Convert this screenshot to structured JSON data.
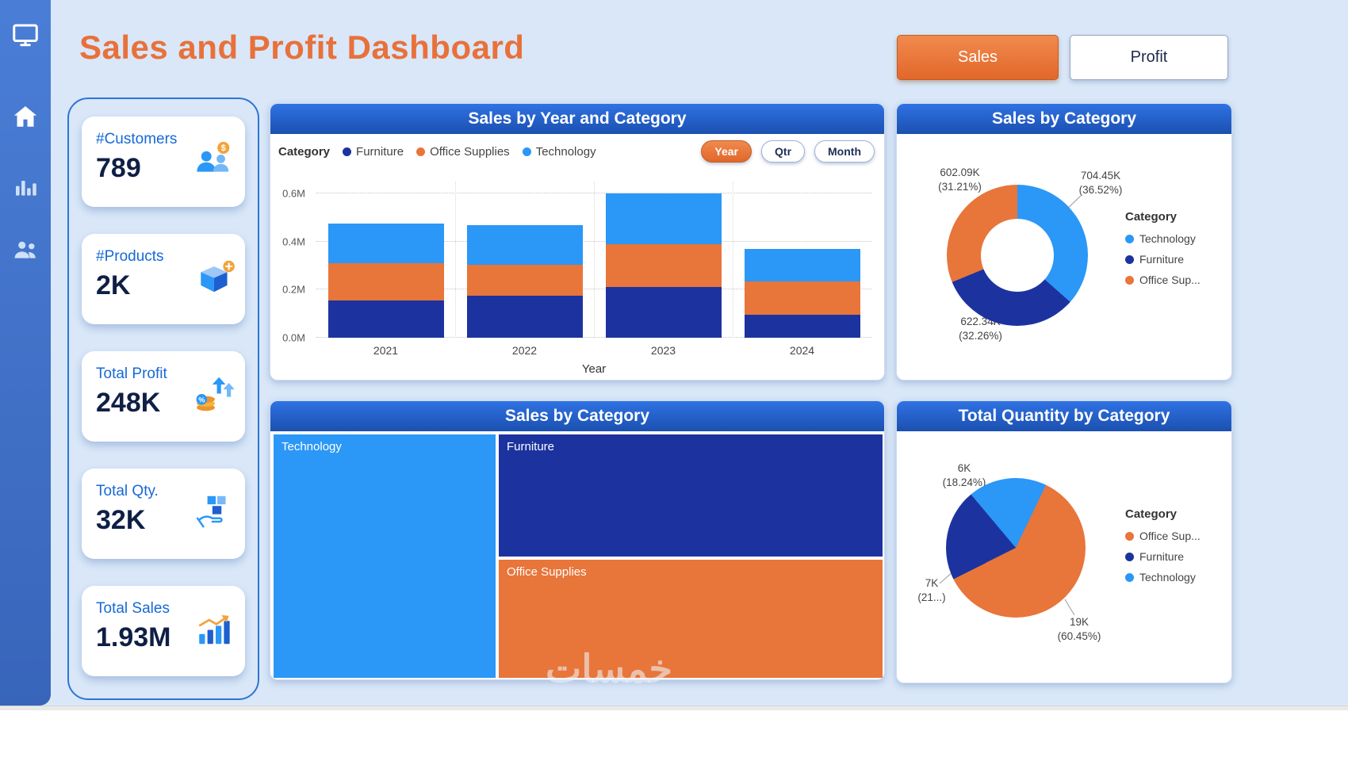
{
  "header": {
    "title": "Sales and Profit Dashboard",
    "buttons": [
      {
        "label": "Sales",
        "active": true
      },
      {
        "label": "Profit",
        "active": false
      }
    ]
  },
  "sidebar": {
    "icons": [
      "monitor",
      "home",
      "bar-chart",
      "people"
    ]
  },
  "kpis": [
    {
      "label": "#Customers",
      "value": "789",
      "icon": "customers-icon"
    },
    {
      "label": "#Products",
      "value": "2K",
      "icon": "products-icon"
    },
    {
      "label": "Total Profit",
      "value": "248K",
      "icon": "profit-icon"
    },
    {
      "label": "Total Qty.",
      "value": "32K",
      "icon": "quantity-icon"
    },
    {
      "label": "Total Sales",
      "value": "1.93M",
      "icon": "sales-icon"
    }
  ],
  "colors": {
    "background": "#d9e7f8",
    "sidebar": "#4a7ed6",
    "accent_orange": "#e8713b",
    "title_bar": "#2563d0",
    "furniture": "#1c339f",
    "office_supplies": "#e8753a",
    "technology": "#2b97f7"
  },
  "bar_chart": {
    "title": "Sales by Year and Category",
    "legend_title": "Category",
    "buttons": {
      "year": "Year",
      "qtr": "Qtr",
      "month": "Month",
      "active": "Year"
    },
    "xlabel": "Year",
    "yticks": [
      {
        "label": "0.0M",
        "value": 0
      },
      {
        "label": "0.2M",
        "value": 0.2
      },
      {
        "label": "0.4M",
        "value": 0.4
      },
      {
        "label": "0.6M",
        "value": 0.6
      }
    ],
    "chart_data": {
      "type": "bar-stacked",
      "categories": [
        "2021",
        "2022",
        "2023",
        "2024"
      ],
      "series": [
        {
          "name": "Furniture",
          "color": "#1c339f",
          "values": [
            0.155,
            0.175,
            0.21,
            0.095
          ]
        },
        {
          "name": "Office Supplies",
          "color": "#e8753a",
          "values": [
            0.155,
            0.13,
            0.18,
            0.14
          ]
        },
        {
          "name": "Technology",
          "color": "#2b97f7",
          "values": [
            0.165,
            0.165,
            0.21,
            0.135
          ]
        }
      ],
      "ylim": [
        0,
        0.65
      ],
      "grid": true,
      "legend_position": "top"
    }
  },
  "treemap": {
    "title": "Sales by Category",
    "chart_data": {
      "type": "treemap",
      "items": [
        {
          "label": "Technology",
          "color": "#2b97f7",
          "share_percent": 36.5
        },
        {
          "label": "Furniture",
          "color": "#1c339f",
          "share_percent": 32.3
        },
        {
          "label": "Office Supplies",
          "color": "#e8753a",
          "share_percent": 31.2
        }
      ]
    }
  },
  "donut_chart": {
    "title": "Sales by Category",
    "legend_title": "Category",
    "chart_data": {
      "type": "donut",
      "start_angle": 0,
      "slices": [
        {
          "label": "Technology",
          "value": "704.45K",
          "percent": 36.52,
          "color": "#2b97f7"
        },
        {
          "label": "Furniture",
          "value": "622.34K",
          "percent": 32.26,
          "color": "#1c339f"
        },
        {
          "label": "Office Supplies",
          "value": "602.09K",
          "percent": 31.21,
          "color": "#e8753a"
        }
      ],
      "legend_position": "right"
    },
    "callouts": {
      "technology": {
        "value": "704.45K",
        "percent": "(36.52%)"
      },
      "office": {
        "value": "602.09K",
        "percent": "(31.21%)"
      },
      "furniture": {
        "value": "622.34K",
        "percent": "(32.26%)"
      }
    },
    "legend_items": [
      {
        "label": "Technology",
        "color": "#2b97f7"
      },
      {
        "label": "Furniture",
        "color": "#1c339f"
      },
      {
        "label": "Office Sup...",
        "color": "#e8753a"
      }
    ]
  },
  "pie_chart": {
    "title": "Total Quantity by Category",
    "legend_title": "Category",
    "chart_data": {
      "type": "pie",
      "start_angle": -40,
      "slices": [
        {
          "label": "Technology",
          "value": "6K",
          "percent": 18.24,
          "color": "#2b97f7"
        },
        {
          "label": "Office Supplies",
          "value": "19K",
          "percent": 60.45,
          "color": "#e8753a"
        },
        {
          "label": "Furniture",
          "value": "7K",
          "percent": 21.31,
          "color": "#1c339f"
        }
      ],
      "legend_position": "right"
    },
    "callouts": {
      "technology": {
        "value": "6K",
        "percent": "(18.24%)"
      },
      "furniture": {
        "value": "7K",
        "percent": "(21...)"
      },
      "office": {
        "value": "19K",
        "percent": "(60.45%)"
      }
    },
    "legend_items": [
      {
        "label": "Office Sup...",
        "color": "#e8753a"
      },
      {
        "label": "Furniture",
        "color": "#1c339f"
      },
      {
        "label": "Technology",
        "color": "#2b97f7"
      }
    ]
  },
  "watermark": "خمسات"
}
